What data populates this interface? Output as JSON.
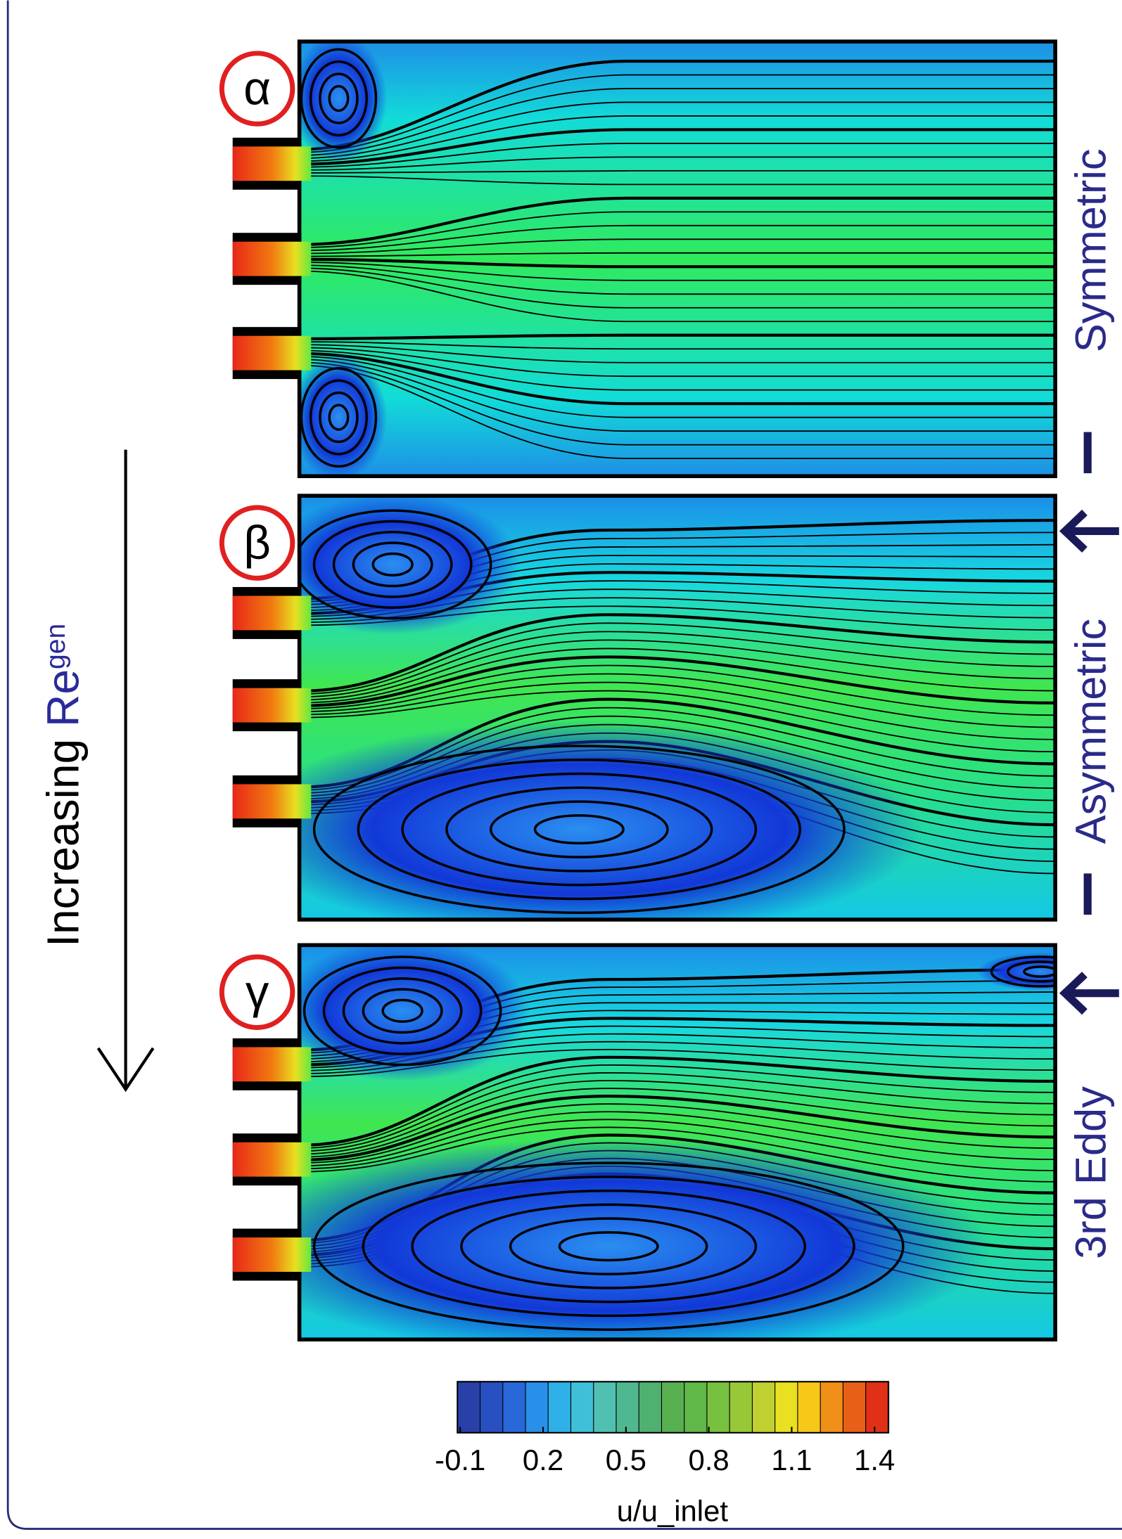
{
  "panels": [
    {
      "label": "α",
      "regime": "Symmetric"
    },
    {
      "label": "β",
      "regime": "Asymmetric"
    },
    {
      "label": "γ",
      "regime": "3rd Eddy"
    }
  ],
  "side_label": {
    "text": "Increasing",
    "variable": "Re",
    "subscript": "gen"
  },
  "colorbar": {
    "lim": [
      -0.11,
      1.45
    ],
    "ticks": [
      -0.1,
      0.2,
      0.5,
      0.8,
      1.1,
      1.4
    ],
    "label": "u/u_inlet"
  }
}
